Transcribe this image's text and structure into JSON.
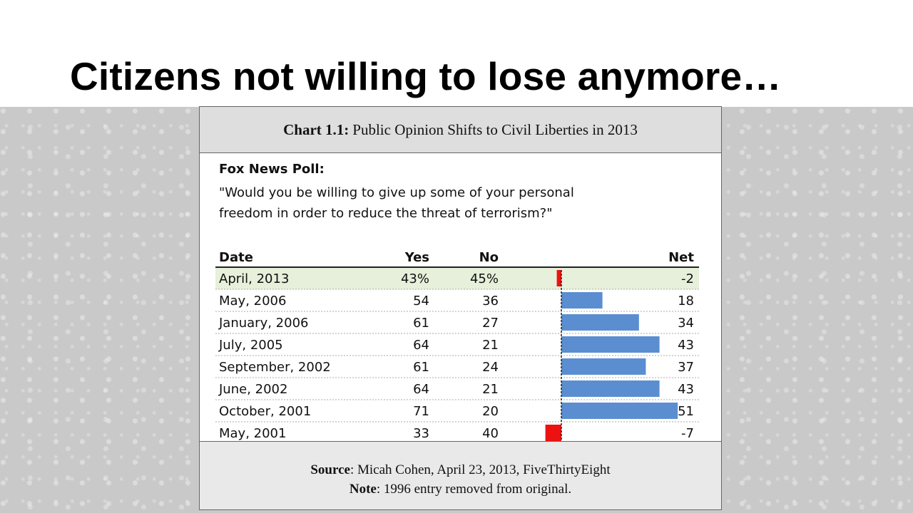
{
  "slide": {
    "title": "Citizens not willing to lose anymore…"
  },
  "panel": {
    "header_bold": "Chart 1.1:",
    "header_text": "Public Opinion Shifts to Civil Liberties in 2013",
    "poll_label": "Fox News Poll:",
    "poll_question": "\"Would you be willing to give up some of your personal\n  freedom in order to reduce the threat of terrorism?\"",
    "footer": {
      "source_label": "Source",
      "source_text": ": Micah Cohen, April 23, 2013, FiveThirtyEight",
      "note_label": "Note",
      "note_text": ": 1996 entry removed from original."
    }
  },
  "colors": {
    "positive_bar": "#5b8ed0",
    "negative_bar": "#ee1111",
    "highlight_row": "#e6f0da"
  },
  "chart_data": {
    "type": "table",
    "columns": [
      "Date",
      "Yes",
      "No",
      "Net"
    ],
    "rows": [
      {
        "date": "April, 2013",
        "yes": "43%",
        "no": "45%",
        "net": -2,
        "highlight": true
      },
      {
        "date": "May, 2006",
        "yes": "54",
        "no": "36",
        "net": 18
      },
      {
        "date": "January, 2006",
        "yes": "61",
        "no": "27",
        "net": 34
      },
      {
        "date": "July, 2005",
        "yes": "64",
        "no": "21",
        "net": 43
      },
      {
        "date": "September, 2002",
        "yes": "61",
        "no": "24",
        "net": 37
      },
      {
        "date": "June, 2002",
        "yes": "64",
        "no": "21",
        "net": 43
      },
      {
        "date": "October, 2001",
        "yes": "71",
        "no": "20",
        "net": 51
      },
      {
        "date": "May, 2001",
        "yes": "33",
        "no": "40",
        "net": -7
      }
    ],
    "bar_series": {
      "name": "Net",
      "xlim": [
        -7,
        51
      ]
    }
  }
}
